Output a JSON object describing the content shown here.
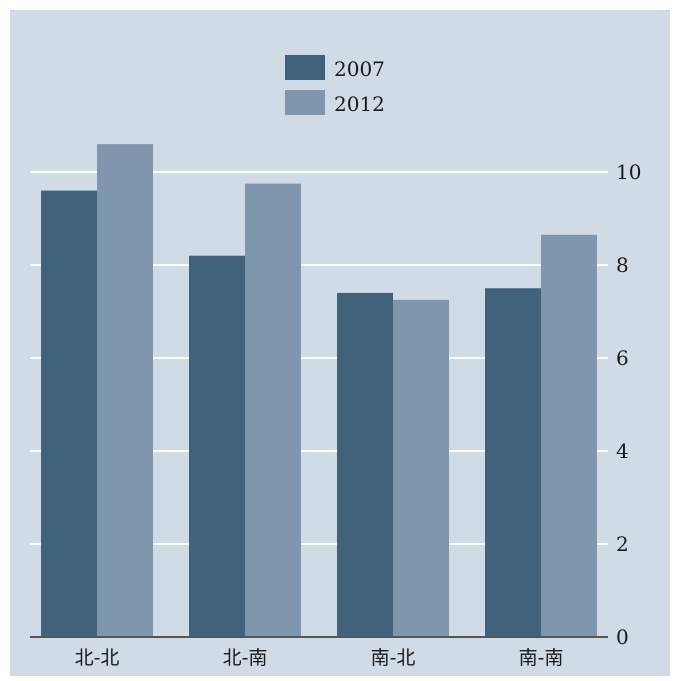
{
  "chart_data": {
    "type": "bar",
    "categories": [
      "北-北",
      "北-南",
      "南-北",
      "南-南"
    ],
    "series": [
      {
        "name": "2007",
        "values": [
          9.6,
          8.2,
          7.4,
          7.5
        ],
        "color": "#40637b"
      },
      {
        "name": "2012",
        "values": [
          10.6,
          9.75,
          7.25,
          8.65
        ],
        "color": "#7f97ad"
      }
    ],
    "ylim": [
      0,
      10.8
    ],
    "yticks": [
      0,
      2,
      4,
      6,
      8,
      10
    ],
    "y_axis_side": "right",
    "grid": true,
    "legend_position": "top-center",
    "title": "",
    "xlabel": "",
    "ylabel": ""
  },
  "colors": {
    "plot_background": "#d0dbe6",
    "gridline": "#ffffff",
    "baseline": "#555555"
  }
}
